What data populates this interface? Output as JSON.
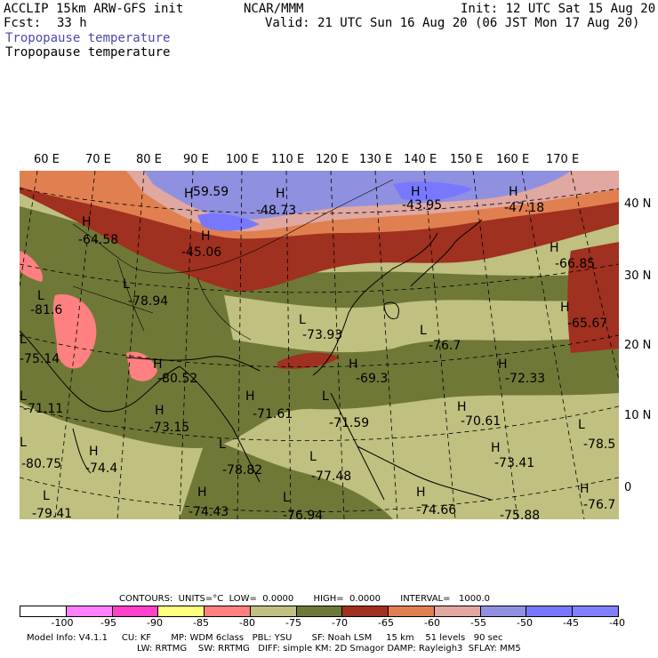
{
  "header": {
    "model": "ACCLIP 15km ARW-GFS init",
    "org": "NCAR/MMM",
    "init": "Init: 12 UTC Sat 15 Aug 20",
    "fcst_label": "Fcst:",
    "fcst_value": "33 h",
    "valid": "Valid: 21 UTC Sun 16 Aug 20 (06 JST Mon 17 Aug 20)",
    "field_title_1": "Tropopause temperature",
    "field_title_2": "Tropopause temperature",
    "field_title_1_color": "#4a4ab0"
  },
  "map": {
    "longitude_labels": [
      "60 E",
      "70 E",
      "80 E",
      "90 E",
      "100 E",
      "110 E",
      "120 E",
      "130 E",
      "140 E",
      "150 E",
      "160 E",
      "170 E"
    ],
    "latitude_labels": [
      "40 N",
      "30 N",
      "20 N",
      "10 N",
      "0"
    ],
    "extrema": [
      {
        "type": "H",
        "value": "-59.59"
      },
      {
        "type": "H",
        "value": "-48.73"
      },
      {
        "type": "H",
        "value": "-43.95"
      },
      {
        "type": "H",
        "value": "-47.18"
      },
      {
        "type": "H",
        "value": "-64.58"
      },
      {
        "type": "H",
        "value": "-45.06"
      },
      {
        "type": "H",
        "value": "-66.85"
      },
      {
        "type": "L",
        "value": "-78.94"
      },
      {
        "type": "L",
        "value": "-81.6"
      },
      {
        "type": "L",
        "value": "-73.93"
      },
      {
        "type": "L",
        "value": "-76.7"
      },
      {
        "type": "H",
        "value": "-65.67"
      },
      {
        "type": "L",
        "value": "-75.14"
      },
      {
        "type": "H",
        "value": "-80.52"
      },
      {
        "type": "H",
        "value": "-69.3"
      },
      {
        "type": "H",
        "value": "-72.33"
      },
      {
        "type": "L",
        "value": "-71.11"
      },
      {
        "type": "H",
        "value": "-73.15"
      },
      {
        "type": "H",
        "value": "-71.61"
      },
      {
        "type": "L",
        "value": "-71.59"
      },
      {
        "type": "H",
        "value": "-70.61"
      },
      {
        "type": "L",
        "value": "-78.5"
      },
      {
        "type": "L",
        "value": "-80.75"
      },
      {
        "type": "H",
        "value": "-74.4"
      },
      {
        "type": "L",
        "value": "-78.82"
      },
      {
        "type": "L",
        "value": "-77.48"
      },
      {
        "type": "H",
        "value": "-73.41"
      },
      {
        "type": "H",
        "value": "-76.7"
      },
      {
        "type": "L",
        "value": "-79.41"
      },
      {
        "type": "H",
        "value": "-74.43"
      },
      {
        "type": "L",
        "value": "-76.94"
      },
      {
        "type": "H",
        "value": "-74.66"
      },
      {
        "type": "L",
        "value": "-75.88"
      }
    ]
  },
  "footer": {
    "contours_line": "CONTOURS:  UNITS=°C  LOW=  0.0000       HIGH=  0.0000       INTERVAL=   1000.0",
    "legend_ticks": [
      "-100",
      "-95",
      "-90",
      "-85",
      "-80",
      "-75",
      "-70",
      "-65",
      "-60",
      "-55",
      "-50",
      "-45",
      "-40",
      "°C"
    ],
    "legend_colors": [
      "#ffffff",
      "#ff80ff",
      "#ff40c8",
      "#ffff80",
      "#ff8080",
      "#c0c080",
      "#a0a060",
      "#707838",
      "#a03020",
      "#e08050",
      "#e0a8a0",
      "#9090e0",
      "#7878ff",
      "#8080ff"
    ],
    "model_info_1": "Model Info: V4.1.1     CU: KF       MP: WDM 6class   PBL: YSU       SF: Noah LSM     15 km    51 levels   90 sec",
    "model_info_2": "LW: RRTMG    SW: RRTMG   DIFF: simple KM: 2D Smagor DAMP: Rayleigh3  SFLAY: MM5"
  }
}
